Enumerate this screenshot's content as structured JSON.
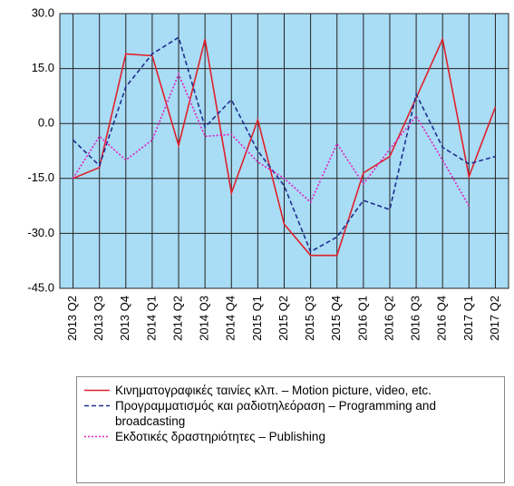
{
  "chart_data": {
    "type": "line",
    "categories": [
      "2013 Q2",
      "2013 Q3",
      "2013 Q4",
      "2014 Q1",
      "2014 Q2",
      "2014 Q3",
      "2014 Q4",
      "2015 Q1",
      "2015 Q2",
      "2015 Q3",
      "2015 Q4",
      "2016 Q1",
      "2016 Q2",
      "2016 Q3",
      "2016 Q4",
      "2017 Q1",
      "2017 Q2"
    ],
    "series": [
      {
        "name": "Κινηματογραφικές ταινίες κλπ. – Motion picture, video, etc.",
        "color": "#e0202a",
        "dash": "solid",
        "values": [
          -15,
          -12,
          19,
          18.5,
          -6,
          23,
          -19,
          1,
          -27.5,
          -36,
          -36,
          -13.5,
          -9,
          7,
          23,
          -14.5,
          4.5
        ]
      },
      {
        "name": "Προγραμματισμός και ραδιοτηλεόραση – Programming and broadcasting",
        "color": "#1f2f8f",
        "dash": "dashed",
        "values": [
          -4.5,
          -11.5,
          10,
          19,
          23.5,
          -1,
          6.5,
          -7.5,
          -17,
          -35,
          -31,
          -21,
          -23.5,
          8,
          -6.5,
          -11,
          -9
        ]
      },
      {
        "name": "Εκδοτικές δραστηριότητες – Publishing",
        "color": "#e020c0",
        "dash": "dotted",
        "values": [
          -15,
          -3.5,
          -10,
          -4.5,
          13.5,
          -3.5,
          -3,
          -10.5,
          -15,
          -21.5,
          -5.5,
          -16.5,
          -7,
          2,
          -10,
          -22.5,
          null
        ]
      }
    ],
    "ylim": [
      -45,
      30
    ],
    "yticks": [
      {
        "value": -45,
        "label": "-45.0"
      },
      {
        "value": -30,
        "label": "-30.0"
      },
      {
        "value": -15,
        "label": "-15.0"
      },
      {
        "value": 0,
        "label": "0.0"
      },
      {
        "value": 15,
        "label": "15.0"
      },
      {
        "value": 30,
        "label": "30.0"
      }
    ],
    "grid": true,
    "background": "#a9dcf5"
  }
}
